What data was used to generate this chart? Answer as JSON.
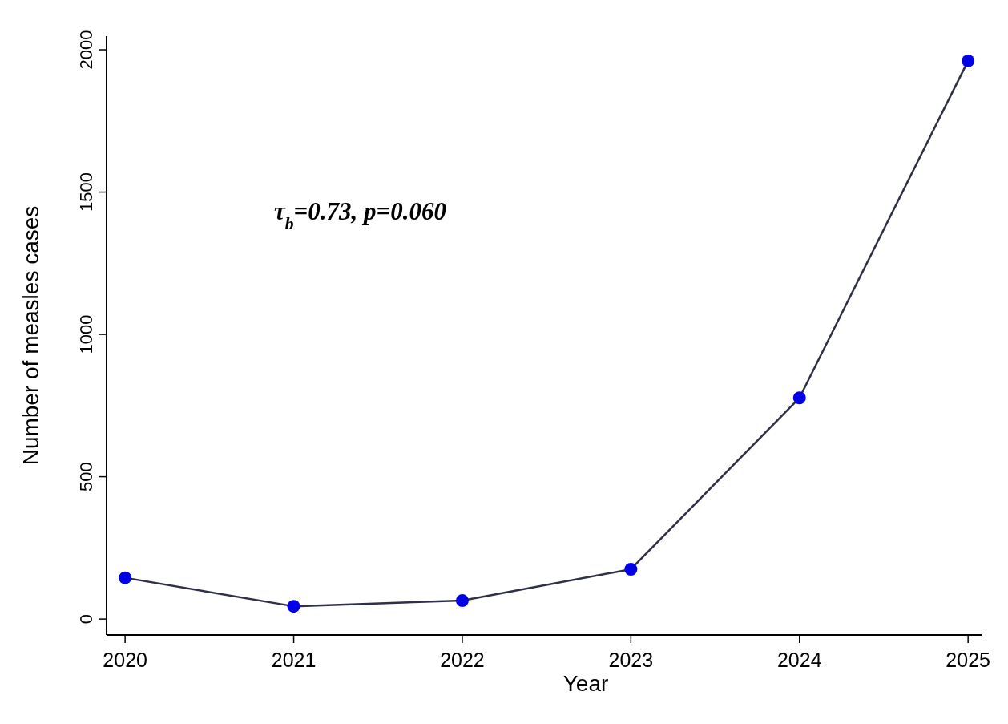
{
  "chart_data": {
    "type": "line",
    "xlabel": "Year",
    "ylabel": "Number of measles cases",
    "x": [
      2020,
      2021,
      2022,
      2023,
      2024,
      2025
    ],
    "series": [
      {
        "color": "#0000e6",
        "values": [
          145,
          45,
          65,
          175,
          777,
          1961
        ]
      }
    ],
    "xlim": [
      2019.89,
      2025.08
    ],
    "xticks": [
      2020,
      2021,
      2022,
      2023,
      2024,
      2025
    ],
    "ylim": [
      -56,
      2048
    ],
    "yticks": [
      0,
      500,
      1000,
      1500,
      2000
    ],
    "grid": false,
    "marker": "circle",
    "line_style": "solid",
    "annotations": [
      "τ$_{b}$=0.73, p=0.060"
    ]
  }
}
